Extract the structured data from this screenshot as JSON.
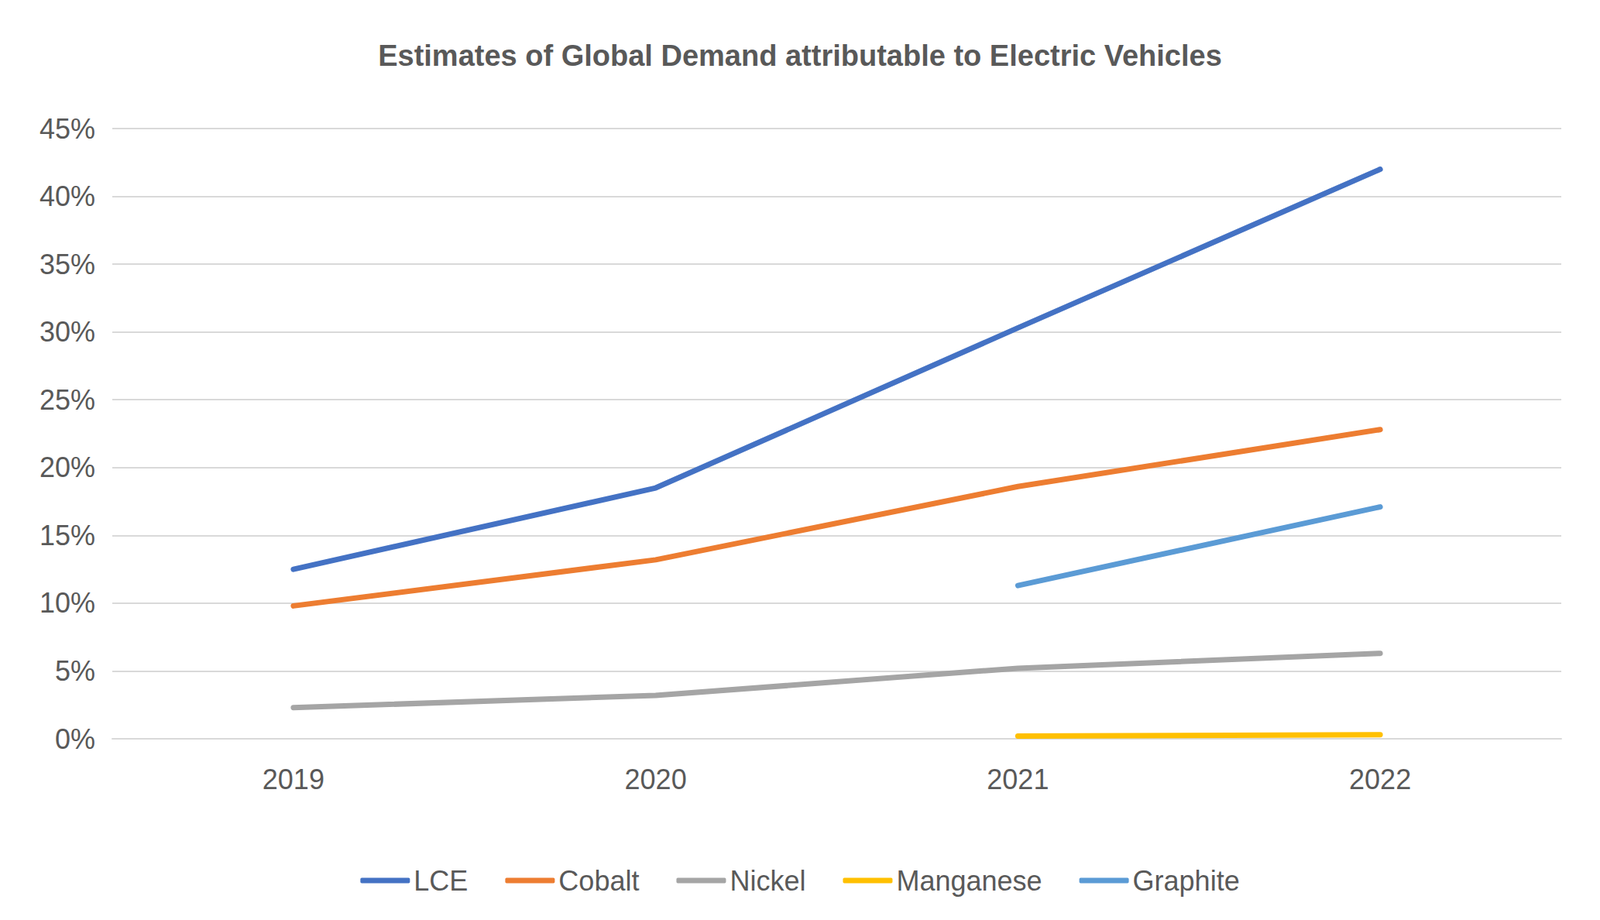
{
  "chart_data": {
    "type": "line",
    "title": "Estimates of Global Demand attributable to Electric Vehicles",
    "categories": [
      "2019",
      "2020",
      "2021",
      "2022"
    ],
    "series": [
      {
        "name": "LCE",
        "color": "#4472c4",
        "values": [
          12.5,
          18.5,
          30.3,
          42.0
        ]
      },
      {
        "name": "Cobalt",
        "color": "#ed7d31",
        "values": [
          9.8,
          13.2,
          18.6,
          22.8
        ]
      },
      {
        "name": "Nickel",
        "color": "#a5a5a5",
        "values": [
          2.3,
          3.2,
          5.2,
          6.3
        ]
      },
      {
        "name": "Manganese",
        "color": "#ffc000",
        "values": [
          null,
          null,
          0.2,
          0.3
        ]
      },
      {
        "name": "Graphite",
        "color": "#5b9bd5",
        "values": [
          null,
          null,
          11.3,
          17.1
        ]
      }
    ],
    "ylim": [
      0,
      45
    ],
    "yticks": [
      {
        "value": 0,
        "label": "0%"
      },
      {
        "value": 5,
        "label": "5%"
      },
      {
        "value": 10,
        "label": "10%"
      },
      {
        "value": 15,
        "label": "15%"
      },
      {
        "value": 20,
        "label": "20%"
      },
      {
        "value": 25,
        "label": "25%"
      },
      {
        "value": 30,
        "label": "30%"
      },
      {
        "value": 35,
        "label": "35%"
      },
      {
        "value": 40,
        "label": "40%"
      },
      {
        "value": 45,
        "label": "45%"
      }
    ],
    "grid": true,
    "legend": "bottom"
  }
}
